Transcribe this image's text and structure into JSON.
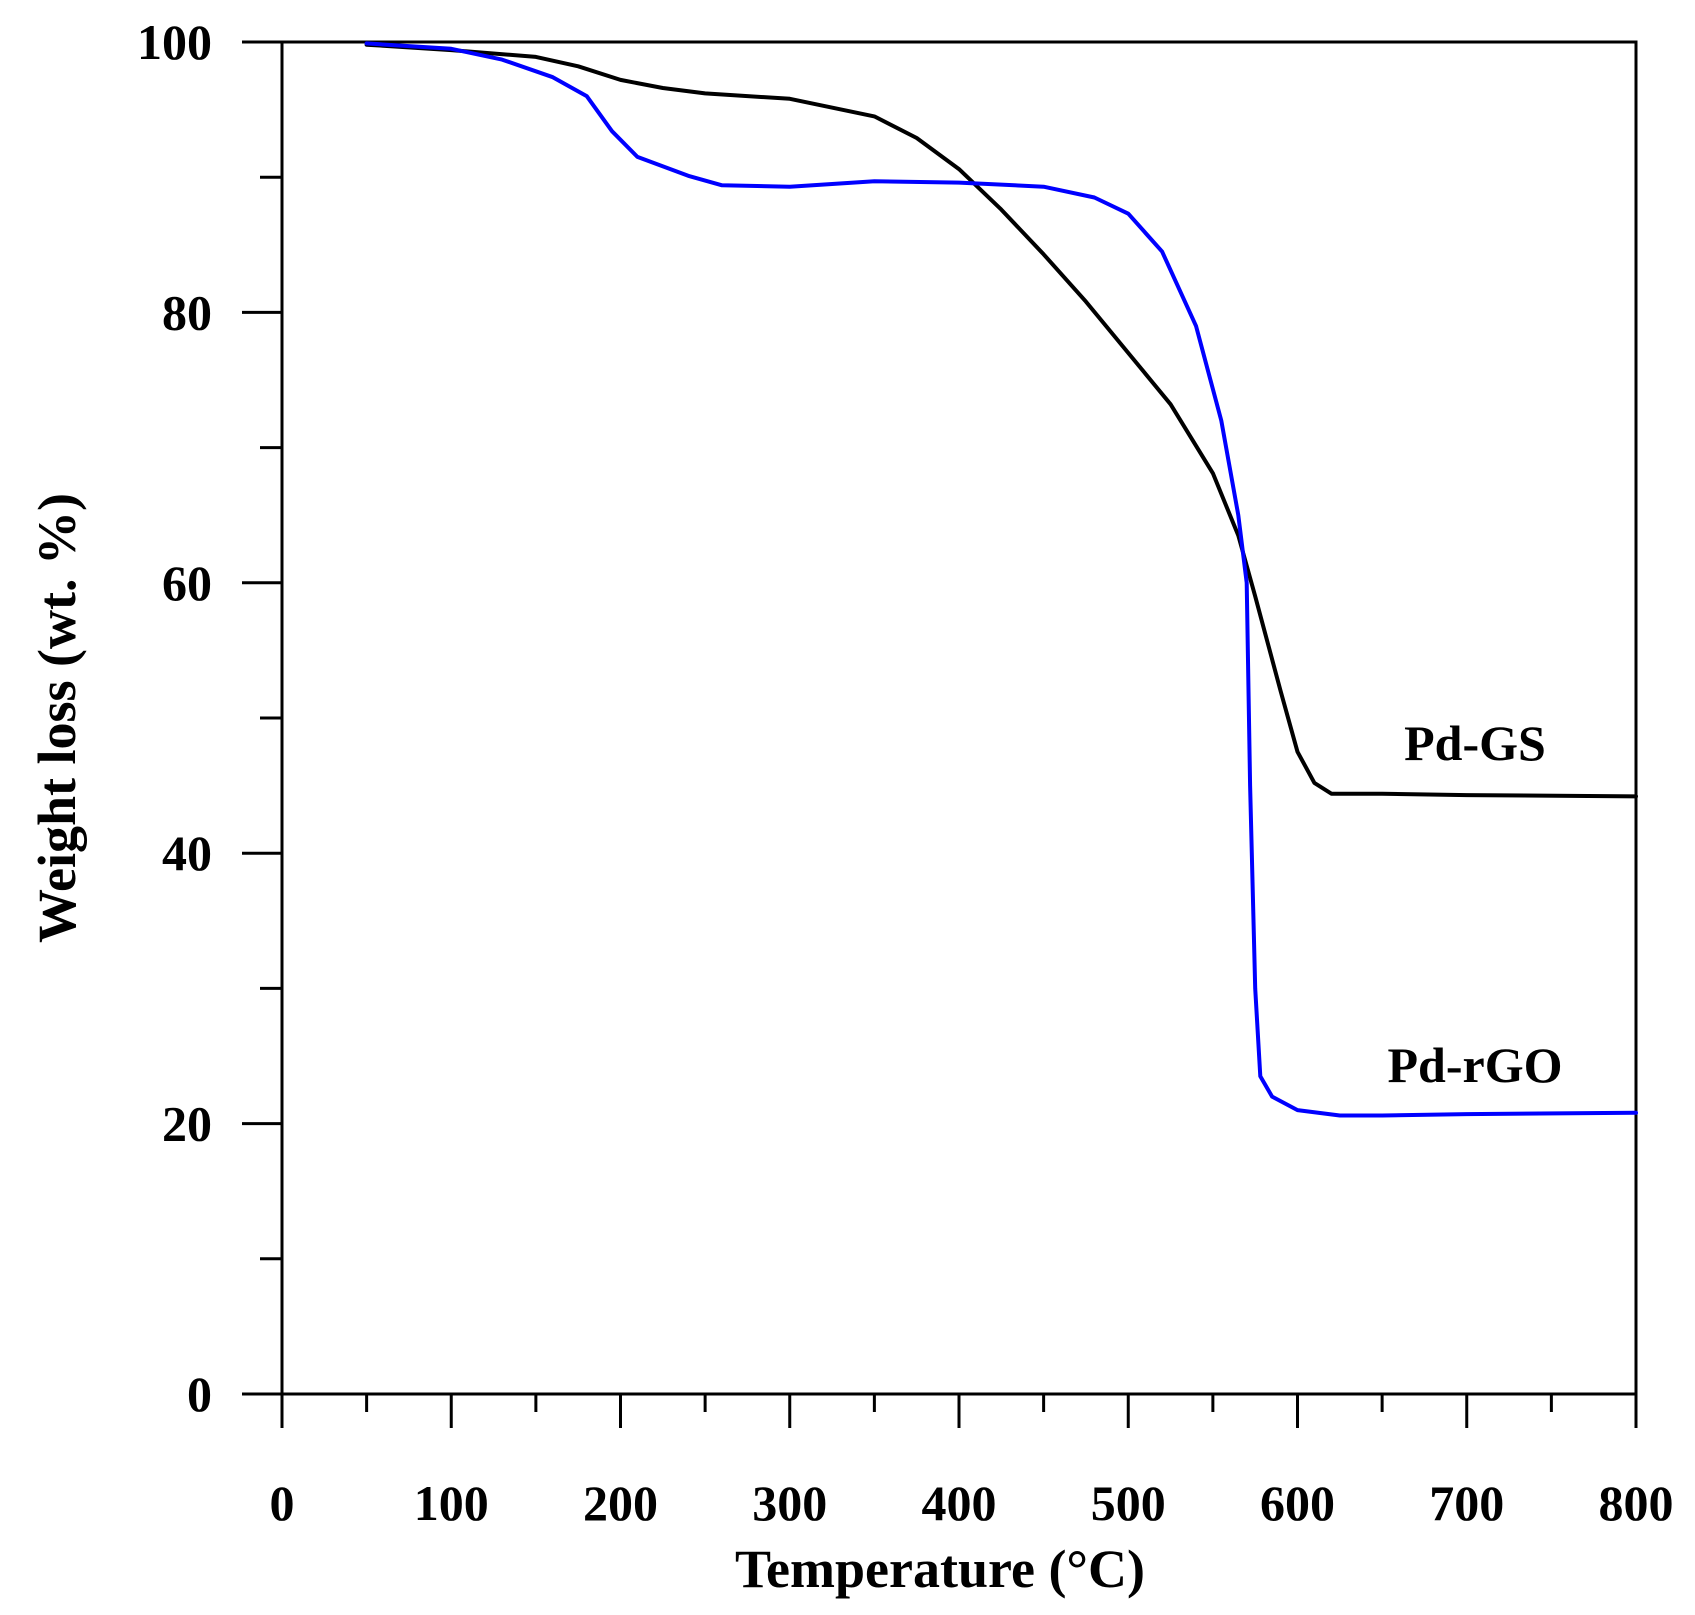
{
  "chart_data": {
    "type": "line",
    "title": "",
    "xlabel": "Temperature (°C)",
    "ylabel": "Weight loss (wt. %)",
    "xlim": [
      0,
      800
    ],
    "ylim": [
      0,
      100
    ],
    "x_major_ticks": [
      0,
      100,
      200,
      300,
      400,
      500,
      600,
      700,
      800
    ],
    "x_minor_ticks": [
      50,
      150,
      250,
      350,
      450,
      550,
      650,
      750
    ],
    "y_major_ticks": [
      0,
      20,
      40,
      60,
      80,
      100
    ],
    "y_minor_ticks": [
      10,
      30,
      50,
      70,
      90
    ],
    "grid": false,
    "series": [
      {
        "name": "Pd-GS",
        "color": "#000000",
        "x": [
          50,
          100,
          150,
          175,
          200,
          225,
          250,
          300,
          350,
          375,
          400,
          425,
          450,
          475,
          500,
          525,
          550,
          565,
          575,
          590,
          600,
          610,
          620,
          650,
          700,
          800
        ],
        "y": [
          99.8,
          99.4,
          98.9,
          98.2,
          97.2,
          96.6,
          96.2,
          95.8,
          94.5,
          92.9,
          90.6,
          87.6,
          84.3,
          80.8,
          77.0,
          73.2,
          68.1,
          63.5,
          59.0,
          52.0,
          47.5,
          45.2,
          44.4,
          44.4,
          44.3,
          44.2
        ]
      },
      {
        "name": "Pd-rGO",
        "color": "#0000ff",
        "x": [
          50,
          100,
          130,
          160,
          180,
          195,
          210,
          240,
          260,
          300,
          350,
          400,
          450,
          480,
          500,
          520,
          540,
          555,
          565,
          570,
          572,
          575,
          578,
          585,
          600,
          625,
          650,
          700,
          800
        ],
        "y": [
          99.9,
          99.5,
          98.7,
          97.4,
          96.0,
          93.4,
          91.5,
          90.1,
          89.4,
          89.3,
          89.7,
          89.6,
          89.3,
          88.5,
          87.3,
          84.5,
          79.0,
          72.0,
          65.0,
          60.0,
          45.0,
          30.0,
          23.5,
          22.0,
          21.0,
          20.6,
          20.6,
          20.7,
          20.8
        ]
      }
    ],
    "annotations": [
      "Pd-GS",
      "Pd-rGO"
    ]
  }
}
